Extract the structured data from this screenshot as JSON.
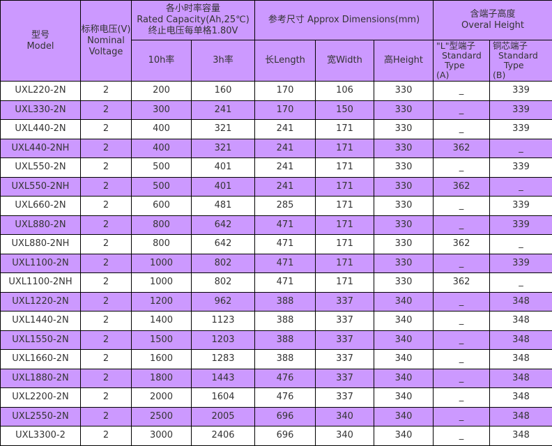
{
  "header": {
    "model": [
      "型号",
      "Model"
    ],
    "voltage": [
      "标称电压(V)",
      "Nominal",
      "Voltage"
    ],
    "capacity": [
      "各小时率容量",
      "Rated Capacity(Ah,25℃)",
      "终止电压每单格1.80V"
    ],
    "cap_10h": "10h率",
    "cap_3h": "3h率",
    "dimensions": "参考尺寸 Approx Dimensions(mm)",
    "length": "长Length",
    "width": "宽Width",
    "height": "高Height",
    "overall": [
      "含端子高度",
      "Overal Height"
    ],
    "type_a": [
      "\"L\"型端子",
      " Standard",
      "  Type",
      " (A)"
    ],
    "type_b": [
      "铜芯端子",
      " Standard",
      "  Type",
      " (B)"
    ]
  },
  "colors": {
    "header_bg": "#cc99ff",
    "alt_row_bg": "#cc99ff",
    "text": "#333333"
  },
  "rows": [
    [
      "UXL220-2N",
      "2",
      "200",
      "160",
      "170",
      "106",
      "330",
      "_",
      "339"
    ],
    [
      "UXL330-2N",
      "2",
      "300",
      "241",
      "170",
      "150",
      "330",
      "_",
      "339"
    ],
    [
      "UXL440-2N",
      "2",
      "400",
      "321",
      "241",
      "171",
      "330",
      "_",
      "339"
    ],
    [
      "UXL440-2NH",
      "2",
      "400",
      "321",
      "241",
      "171",
      "330",
      "362",
      "_"
    ],
    [
      "UXL550-2N",
      "2",
      "500",
      "401",
      "241",
      "171",
      "330",
      "_",
      "339"
    ],
    [
      "UXL550-2NH",
      "2",
      "500",
      "401",
      "241",
      "171",
      "330",
      "362",
      "_"
    ],
    [
      "UXL660-2N",
      "2",
      "600",
      "481",
      "285",
      "171",
      "330",
      "_",
      "339"
    ],
    [
      "UXL880-2N",
      "2",
      "800",
      "642",
      "471",
      "171",
      "330",
      "_",
      "339"
    ],
    [
      "UXL880-2NH",
      "2",
      "800",
      "642",
      "471",
      "171",
      "330",
      "362",
      "_"
    ],
    [
      "UXL1100-2N",
      "2",
      "1000",
      "802",
      "471",
      "171",
      "330",
      "_",
      "339"
    ],
    [
      "UXL1100-2NH",
      "2",
      "1000",
      "802",
      "471",
      "171",
      "330",
      "362",
      "_"
    ],
    [
      "UXL1220-2N",
      "2",
      "1200",
      "962",
      "388",
      "337",
      "340",
      "_",
      "348"
    ],
    [
      "UXL1440-2N",
      "2",
      "1400",
      "1123",
      "388",
      "337",
      "340",
      "_",
      "348"
    ],
    [
      "UXL1550-2N",
      "2",
      "1500",
      "1203",
      "388",
      "337",
      "340",
      "_",
      "348"
    ],
    [
      "UXL1660-2N",
      "2",
      "1600",
      "1283",
      "388",
      "337",
      "340",
      "_",
      "348"
    ],
    [
      "UXL1880-2N",
      "2",
      "1800",
      "1443",
      "476",
      "337",
      "340",
      "_",
      "348"
    ],
    [
      "UXL2200-2N",
      "2",
      "2000",
      "1604",
      "476",
      "337",
      "340",
      "_",
      "348"
    ],
    [
      "UXL2550-2N",
      "2",
      "2500",
      "2005",
      "696",
      "340",
      "340",
      "_",
      "348"
    ],
    [
      "UXL3300-2",
      "2",
      "3000",
      "2406",
      "696",
      "340",
      "340",
      "_",
      "348"
    ]
  ]
}
